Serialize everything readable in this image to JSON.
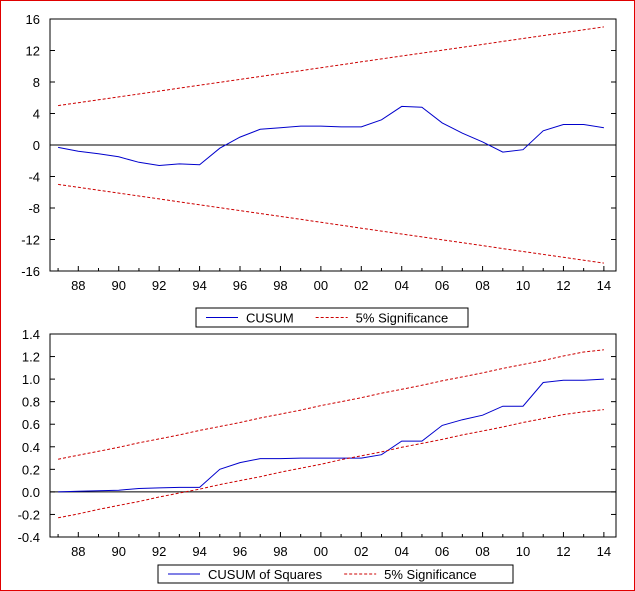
{
  "chart_data": [
    {
      "type": "line",
      "x": [
        1987,
        1988,
        1989,
        1990,
        1991,
        1992,
        1993,
        1994,
        1995,
        1996,
        1997,
        1998,
        1999,
        2000,
        2001,
        2002,
        2003,
        2004,
        2005,
        2006,
        2007,
        2008,
        2009,
        2010,
        2011,
        2012,
        2013,
        2014
      ],
      "x_tick_labels": [
        "88",
        "90",
        "92",
        "94",
        "96",
        "98",
        "00",
        "02",
        "04",
        "06",
        "08",
        "10",
        "12",
        "14"
      ],
      "x_tick_values": [
        1988,
        1990,
        1992,
        1994,
        1996,
        1998,
        2000,
        2002,
        2004,
        2006,
        2008,
        2010,
        2012,
        2014
      ],
      "ylim": [
        -16,
        16
      ],
      "y_ticks": [
        -16,
        -12,
        -8,
        -4,
        0,
        4,
        8,
        12,
        16
      ],
      "grid": false,
      "zero_line": true,
      "legend_placement": "bottom-center",
      "series": [
        {
          "name": "CUSUM",
          "color": "#0000cc",
          "style": "solid",
          "values": [
            -0.3,
            -0.8,
            -1.1,
            -1.5,
            -2.2,
            -2.6,
            -2.4,
            -2.5,
            -0.4,
            1.0,
            2.0,
            2.2,
            2.4,
            2.4,
            2.3,
            2.3,
            3.2,
            4.9,
            4.8,
            2.8,
            1.5,
            0.4,
            -0.9,
            -0.6,
            1.8,
            2.6,
            2.6,
            2.2
          ]
        },
        {
          "name": "5% Significance",
          "color": "#cc0000",
          "style": "dashed",
          "values": [
            5.0,
            5.37,
            5.74,
            6.11,
            6.48,
            6.85,
            7.22,
            7.59,
            7.96,
            8.33,
            8.7,
            9.07,
            9.44,
            9.81,
            10.19,
            10.56,
            10.93,
            11.3,
            11.67,
            12.04,
            12.41,
            12.78,
            13.15,
            13.52,
            13.89,
            14.26,
            14.63,
            15.0
          ]
        },
        {
          "color": "#cc0000",
          "style": "dashed",
          "values": [
            -5.0,
            -5.37,
            -5.74,
            -6.11,
            -6.48,
            -6.85,
            -7.22,
            -7.59,
            -7.96,
            -8.33,
            -8.7,
            -9.07,
            -9.44,
            -9.81,
            -10.19,
            -10.56,
            -10.93,
            -11.3,
            -11.67,
            -12.04,
            -12.41,
            -12.78,
            -13.15,
            -13.52,
            -13.89,
            -14.26,
            -14.63,
            -15.0
          ]
        }
      ]
    },
    {
      "type": "line",
      "x": [
        1987,
        1988,
        1989,
        1990,
        1991,
        1992,
        1993,
        1994,
        1995,
        1996,
        1997,
        1998,
        1999,
        2000,
        2001,
        2002,
        2003,
        2004,
        2005,
        2006,
        2007,
        2008,
        2009,
        2010,
        2011,
        2012,
        2013,
        2014
      ],
      "x_tick_labels": [
        "88",
        "90",
        "92",
        "94",
        "96",
        "98",
        "00",
        "02",
        "04",
        "06",
        "08",
        "10",
        "12",
        "14"
      ],
      "x_tick_values": [
        1988,
        1990,
        1992,
        1994,
        1996,
        1998,
        2000,
        2002,
        2004,
        2006,
        2008,
        2010,
        2012,
        2014
      ],
      "ylim": [
        -0.4,
        1.4
      ],
      "y_ticks": [
        -0.4,
        -0.2,
        0.0,
        0.2,
        0.4,
        0.6,
        0.8,
        1.0,
        1.2,
        1.4
      ],
      "y_tick_labels": [
        "-0.4",
        "-0.2",
        "0.0",
        "0.2",
        "0.4",
        "0.6",
        "0.8",
        "1.0",
        "1.2",
        "1.4"
      ],
      "grid": false,
      "zero_line": true,
      "legend_placement": "bottom-center",
      "series": [
        {
          "name": "CUSUM of Squares",
          "color": "#0000cc",
          "style": "solid",
          "values": [
            0.0,
            0.005,
            0.01,
            0.015,
            0.03,
            0.035,
            0.04,
            0.04,
            0.2,
            0.26,
            0.295,
            0.295,
            0.3,
            0.3,
            0.3,
            0.3,
            0.33,
            0.45,
            0.45,
            0.59,
            0.64,
            0.68,
            0.76,
            0.76,
            0.97,
            0.99,
            0.99,
            1.0
          ]
        },
        {
          "name": "5% Significance",
          "color": "#cc0000",
          "style": "dashed",
          "values": [
            0.29,
            0.325,
            0.36,
            0.395,
            0.435,
            0.47,
            0.505,
            0.545,
            0.58,
            0.615,
            0.655,
            0.69,
            0.725,
            0.765,
            0.8,
            0.835,
            0.875,
            0.91,
            0.945,
            0.985,
            1.02,
            1.055,
            1.095,
            1.13,
            1.165,
            1.205,
            1.24,
            1.26
          ]
        },
        {
          "color": "#cc0000",
          "style": "dashed",
          "values": [
            -0.23,
            -0.195,
            -0.155,
            -0.12,
            -0.085,
            -0.045,
            -0.01,
            0.025,
            0.065,
            0.1,
            0.135,
            0.175,
            0.21,
            0.245,
            0.285,
            0.32,
            0.355,
            0.395,
            0.43,
            0.465,
            0.505,
            0.54,
            0.575,
            0.615,
            0.65,
            0.685,
            0.71,
            0.73
          ]
        }
      ]
    }
  ]
}
